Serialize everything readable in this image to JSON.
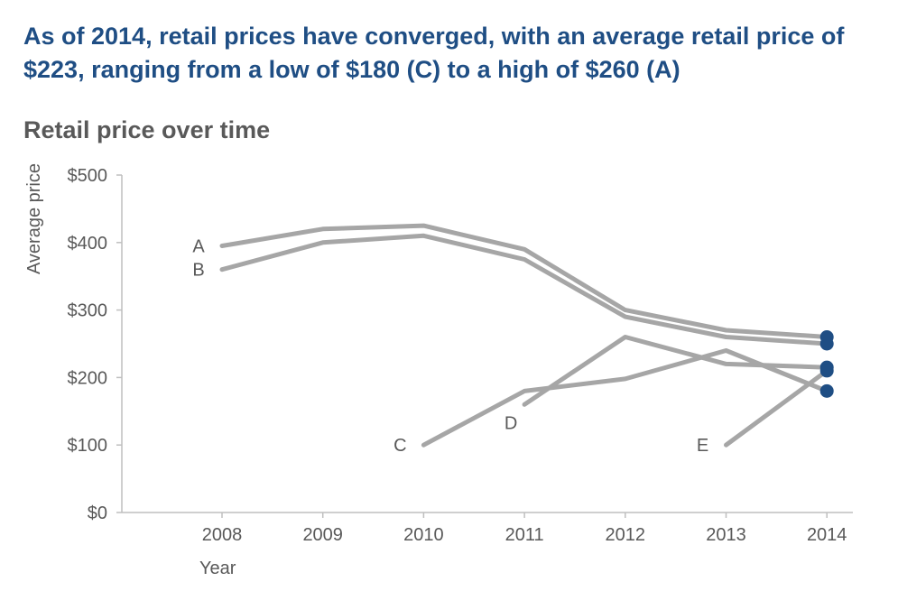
{
  "headline": {
    "part1": "As of 2014, retail prices have converged, with an ",
    "bold": "average retail price of $223",
    "part2": ", ranging from a low of $180 (C) to a high of $260 (A)"
  },
  "colors": {
    "headline": "#1f4e84",
    "line": "#a6a6a6",
    "marker": "#1f4e84",
    "axis_text": "#595959",
    "axis_line": "#bfbfbf"
  },
  "chart_data": {
    "type": "line",
    "title": "Retail price over time",
    "xlabel": "Year",
    "ylabel": "Average price",
    "ylim": [
      0,
      500
    ],
    "yticks": [
      0,
      100,
      200,
      300,
      400,
      500
    ],
    "ytick_labels": [
      "$0",
      "$100",
      "$200",
      "$300",
      "$400",
      "$500"
    ],
    "categories": [
      "2008",
      "2009",
      "2010",
      "2011",
      "2012",
      "2013",
      "2014"
    ],
    "grid": false,
    "series": [
      {
        "name": "A",
        "label_position": "start",
        "values": [
          395,
          420,
          425,
          390,
          300,
          270,
          260
        ]
      },
      {
        "name": "B",
        "label_position": "start",
        "values": [
          360,
          400,
          410,
          375,
          290,
          260,
          250
        ]
      },
      {
        "name": "C",
        "label_position": "start",
        "values": [
          null,
          null,
          100,
          180,
          198,
          240,
          180
        ]
      },
      {
        "name": "D",
        "label_position": "below-start",
        "values": [
          null,
          null,
          null,
          160,
          260,
          220,
          215
        ]
      },
      {
        "name": "E",
        "label_position": "start",
        "values": [
          null,
          null,
          null,
          null,
          null,
          100,
          210
        ]
      }
    ]
  }
}
